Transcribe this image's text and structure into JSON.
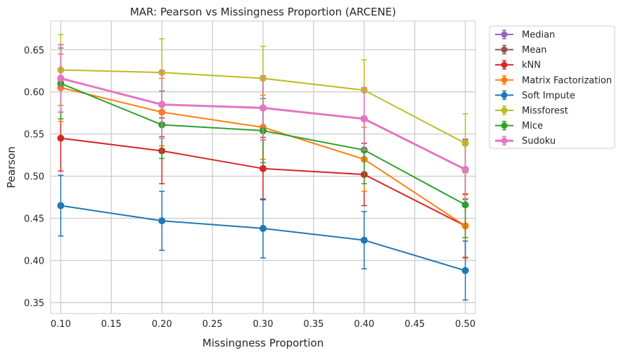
{
  "chart_data": {
    "type": "line",
    "title": "MAR: Pearson vs Missingness Proportion (ARCENE)",
    "xlabel": "Missingness Proportion",
    "ylabel": "Pearson",
    "xlim": [
      0.09,
      0.51
    ],
    "ylim": [
      0.337,
      0.684
    ],
    "x_ticks": [
      0.1,
      0.15,
      0.2,
      0.25,
      0.3,
      0.35,
      0.4,
      0.45,
      0.5
    ],
    "x_tick_labels": [
      "0.10",
      "0.15",
      "0.20",
      "0.25",
      "0.30",
      "0.35",
      "0.40",
      "0.45",
      "0.50"
    ],
    "y_ticks": [
      0.35,
      0.4,
      0.45,
      0.5,
      0.55,
      0.6,
      0.65
    ],
    "y_tick_labels": [
      "0.35",
      "0.40",
      "0.45",
      "0.50",
      "0.55",
      "0.60",
      "0.65"
    ],
    "grid": true,
    "legend_position": "outside-right",
    "x": [
      0.1,
      0.2,
      0.3,
      0.4,
      0.5
    ],
    "series": [
      {
        "name": "Median",
        "color": "#9467bd",
        "width": 2,
        "values": [
          0.616,
          0.585,
          0.581,
          0.568,
          0.508
        ],
        "errors": [
          0.04,
          0.04,
          0.038,
          0.037,
          0.036
        ]
      },
      {
        "name": "Mean",
        "color": "#8c564b",
        "width": 2,
        "values": [
          0.616,
          0.585,
          0.581,
          0.568,
          0.508
        ],
        "errors": [
          0.04,
          0.038,
          0.038,
          0.036,
          0.035
        ]
      },
      {
        "name": "kNN",
        "color": "#d62728",
        "width": 2,
        "values": [
          0.545,
          0.53,
          0.509,
          0.502,
          0.441
        ],
        "errors": [
          0.039,
          0.039,
          0.037,
          0.037,
          0.038
        ]
      },
      {
        "name": "Matrix Factorization",
        "color": "#ff7f0e",
        "width": 2,
        "values": [
          0.605,
          0.576,
          0.558,
          0.52,
          0.441
        ],
        "errors": [
          0.04,
          0.04,
          0.038,
          0.038,
          0.037
        ]
      },
      {
        "name": "Soft Impute",
        "color": "#1f77b4",
        "width": 2,
        "values": [
          0.465,
          0.447,
          0.438,
          0.424,
          0.388
        ],
        "errors": [
          0.036,
          0.035,
          0.035,
          0.034,
          0.035
        ]
      },
      {
        "name": "Missforest",
        "color": "#bcbd22",
        "width": 2,
        "values": [
          0.626,
          0.623,
          0.616,
          0.602,
          0.539
        ],
        "errors": [
          0.042,
          0.04,
          0.038,
          0.036,
          0.035
        ]
      },
      {
        "name": "Mice",
        "color": "#2ca02c",
        "width": 2,
        "values": [
          0.61,
          0.561,
          0.554,
          0.531,
          0.466
        ],
        "errors": [
          0.042,
          0.04,
          0.038,
          0.04,
          0.039
        ]
      },
      {
        "name": "Sudoku",
        "color": "#e377c2",
        "width": 3,
        "values": [
          0.616,
          0.585,
          0.581,
          0.568,
          0.508
        ],
        "errors": [
          0.04,
          0.04,
          0.038,
          0.037,
          0.036
        ]
      }
    ]
  }
}
